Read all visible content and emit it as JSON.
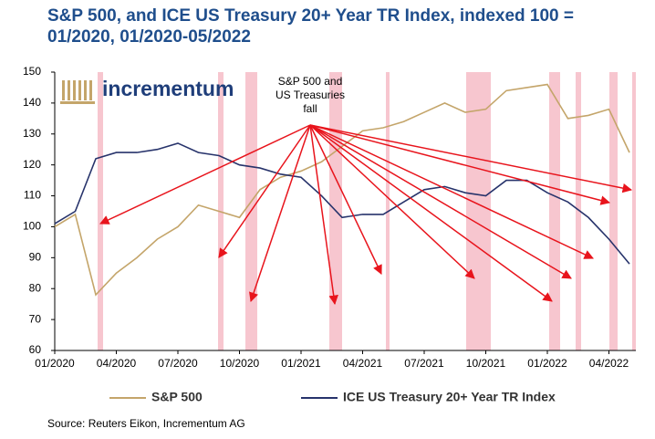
{
  "chart_data": {
    "type": "line",
    "title": "S&P 500, and ICE US Treasury 20+ Year TR Index, indexed 100 = 01/2020, 01/2020-05/2022",
    "logo": "incrementum",
    "annotation": "S&P 500 and US Treasuries fall",
    "source": "Source: Reuters Eikon, Incrementum AG",
    "x": [
      "01/2020",
      "02/2020",
      "03/2020",
      "04/2020",
      "05/2020",
      "06/2020",
      "07/2020",
      "08/2020",
      "09/2020",
      "10/2020",
      "11/2020",
      "12/2020",
      "01/2021",
      "02/2021",
      "03/2021",
      "04/2021",
      "05/2021",
      "06/2021",
      "07/2021",
      "08/2021",
      "09/2021",
      "10/2021",
      "11/2021",
      "12/2021",
      "01/2022",
      "02/2022",
      "03/2022",
      "04/2022",
      "05/2022"
    ],
    "xticks": [
      "01/2020",
      "04/2020",
      "07/2020",
      "10/2020",
      "01/2021",
      "04/2021",
      "07/2021",
      "10/2021",
      "01/2022",
      "04/2022"
    ],
    "ylim": [
      60,
      150
    ],
    "yticks": [
      60,
      70,
      80,
      90,
      100,
      110,
      120,
      130,
      140,
      150
    ],
    "grid": false,
    "series": [
      {
        "name": "S&P 500",
        "color": "#c4a56a",
        "values": [
          100,
          104,
          78,
          85,
          90,
          96,
          100,
          107,
          105,
          103,
          112,
          116,
          118,
          121,
          126,
          131,
          132,
          134,
          137,
          140,
          137,
          138,
          144,
          145,
          146,
          135,
          136,
          138,
          124
        ]
      },
      {
        "name": "ICE US Treasury 20+ Year TR Index",
        "color": "#27336b",
        "values": [
          101,
          105,
          122,
          124,
          124,
          125,
          127,
          124,
          123,
          120,
          119,
          117,
          116,
          110,
          103,
          104,
          104,
          108,
          112,
          113,
          111,
          110,
          115,
          115,
          111,
          108,
          103,
          96,
          88
        ]
      }
    ]
  }
}
